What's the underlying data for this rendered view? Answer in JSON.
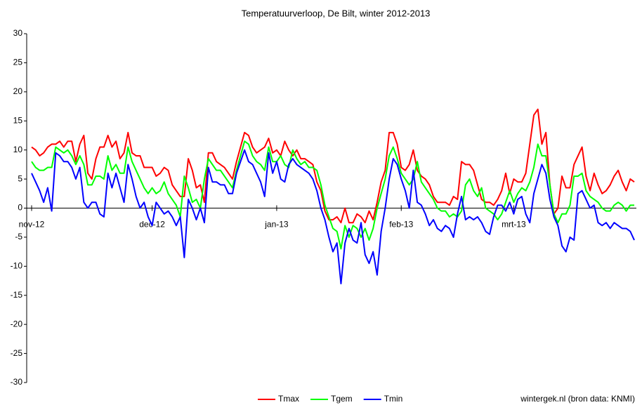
{
  "chart_data": {
    "type": "line",
    "title": "Temperatuurverloop, De Bilt, winter 2012-2013",
    "source": "wintergek.nl (bron data: KNMI)",
    "categories": [
      "nov-12",
      null,
      null,
      null,
      null,
      null,
      null,
      null,
      null,
      null,
      null,
      null,
      null,
      null,
      null,
      null,
      null,
      null,
      null,
      null,
      null,
      null,
      null,
      null,
      null,
      null,
      null,
      null,
      null,
      null,
      "dec-12",
      null,
      null,
      null,
      null,
      null,
      null,
      null,
      null,
      null,
      null,
      null,
      null,
      null,
      null,
      null,
      null,
      null,
      null,
      null,
      null,
      null,
      null,
      null,
      null,
      null,
      null,
      null,
      null,
      null,
      null,
      "jan-13",
      null,
      null,
      null,
      null,
      null,
      null,
      null,
      null,
      null,
      null,
      null,
      null,
      null,
      null,
      null,
      null,
      null,
      null,
      null,
      null,
      null,
      null,
      null,
      null,
      null,
      null,
      null,
      null,
      null,
      null,
      "feb-13",
      null,
      null,
      null,
      null,
      null,
      null,
      null,
      null,
      null,
      null,
      null,
      null,
      null,
      null,
      null,
      null,
      null,
      null,
      null,
      null,
      null,
      null,
      null,
      null,
      null,
      null,
      null,
      "mrt-13",
      null,
      null,
      null,
      null,
      null,
      null,
      null,
      null,
      null,
      null,
      null,
      null,
      null,
      null,
      null,
      null,
      null,
      null,
      null,
      null,
      null,
      null,
      null,
      null,
      null,
      null,
      null,
      null,
      null,
      null
    ],
    "series": [
      {
        "name": "Tmax",
        "color": "#ff0000",
        "values": [
          10.5,
          10,
          9,
          9.5,
          10.5,
          11,
          11,
          11.5,
          10.5,
          11.5,
          11.5,
          8,
          11,
          12.5,
          6,
          5,
          8.5,
          10.5,
          10.5,
          12.5,
          10.5,
          11.5,
          8.5,
          9.5,
          13,
          9.5,
          9,
          9,
          7,
          7,
          7,
          5.5,
          6,
          7,
          6.5,
          4,
          3,
          2,
          2,
          8.5,
          6.5,
          3.5,
          4,
          1,
          9.5,
          9.5,
          8,
          7.5,
          7,
          6,
          5,
          8,
          10.5,
          13,
          12.5,
          10.5,
          9.5,
          10,
          10.5,
          12,
          9.5,
          10,
          9,
          11.5,
          10,
          9,
          10,
          8.5,
          8.5,
          8,
          7.5,
          4.5,
          3,
          -0.5,
          -2,
          -2,
          -1.5,
          -2.5,
          0,
          -2.5,
          -2.5,
          -1,
          -1.5,
          -2.5,
          -0.5,
          -2,
          1,
          4.5,
          6.5,
          13,
          13,
          11,
          7,
          6.5,
          7.5,
          10,
          6.5,
          5.5,
          5,
          4,
          2,
          1,
          1,
          1,
          0.5,
          2,
          1.5,
          8,
          7.5,
          7.5,
          6.5,
          4,
          1.5,
          1,
          1,
          0.5,
          1.5,
          3,
          6,
          2.5,
          5,
          4.5,
          4.5,
          6,
          11,
          16,
          17,
          11,
          13,
          4,
          -1,
          0,
          5.5,
          3.5,
          3.5,
          7.5,
          9,
          10.5,
          5.5,
          3,
          6,
          4,
          2.5,
          3,
          4,
          5.5,
          6.5,
          4.5,
          3,
          5,
          4.5
        ]
      },
      {
        "name": "Tgem",
        "color": "#00ff00",
        "values": [
          8,
          7,
          6.5,
          6.5,
          7,
          7,
          10.5,
          10,
          9.5,
          10,
          9,
          7.5,
          9,
          7.5,
          4,
          4,
          5.5,
          5.5,
          5,
          9,
          6.5,
          7.5,
          6,
          6,
          10.5,
          8,
          6.5,
          5,
          3.5,
          2.5,
          3.5,
          2.5,
          3,
          4.5,
          2.5,
          1.5,
          0.5,
          -1.5,
          5.5,
          3.5,
          1,
          1.5,
          0,
          5,
          8.5,
          7.5,
          6.5,
          6.5,
          5.5,
          4.5,
          3.5,
          6.5,
          9,
          11.5,
          11,
          9,
          8,
          7.5,
          6.5,
          10.5,
          8,
          8,
          9,
          7.5,
          7,
          10,
          8.5,
          7.5,
          8,
          7,
          7,
          6.5,
          4,
          0.5,
          -1.5,
          -3.5,
          -4,
          -7,
          -3,
          -5,
          -3,
          -3.5,
          -5,
          -3.5,
          -5.5,
          -3.5,
          0,
          2.5,
          5,
          9,
          10.5,
          8.5,
          6,
          5,
          4,
          5,
          8,
          4.5,
          3.5,
          2.5,
          1.5,
          0,
          -0.5,
          -0.5,
          -1.5,
          -1,
          -1.5,
          -0.5,
          4,
          5,
          3,
          2,
          3.5,
          0,
          -0.5,
          -1,
          -2,
          -1,
          1,
          3,
          1,
          2.5,
          3.5,
          3,
          4.5,
          7,
          11,
          9,
          9,
          4,
          -1,
          -2.5,
          -1,
          -1,
          0.5,
          5.5,
          5.5,
          6,
          3,
          2,
          1.5,
          1,
          0,
          -0.5,
          -0.5,
          0.5,
          1,
          0.5,
          -0.5,
          0.5,
          0.5
        ]
      },
      {
        "name": "Tmin",
        "color": "#0000ff",
        "values": [
          6,
          4.5,
          3,
          1,
          3.5,
          -0.5,
          9.5,
          9,
          8,
          8,
          7,
          5,
          7,
          1,
          0,
          1,
          1,
          -1,
          -1.5,
          6,
          3.5,
          6,
          3.5,
          1,
          7.5,
          5,
          2,
          0,
          1,
          -1.5,
          -3,
          1,
          0,
          -1,
          -0.5,
          -1.5,
          -3,
          -1.5,
          -8.5,
          1.5,
          0,
          -2,
          0,
          -2.5,
          7,
          4.5,
          4.5,
          4,
          4,
          2.5,
          2.5,
          6,
          8,
          10,
          8,
          7.5,
          6,
          4.5,
          2,
          9.5,
          6,
          8,
          5,
          4.5,
          7.5,
          8.5,
          7.5,
          7,
          6.5,
          6,
          5,
          3,
          0,
          -2,
          -5,
          -7.5,
          -6,
          -13,
          -6,
          -3.5,
          -5.5,
          -6,
          -2.5,
          -8,
          -9.5,
          -7.5,
          -11.5,
          -4,
          0,
          5,
          8.5,
          7.5,
          5,
          3,
          0,
          6.5,
          1,
          0.5,
          -1,
          -3,
          -2,
          -3.5,
          -4,
          -3,
          -3.5,
          -5,
          -1,
          2,
          -2,
          -1.5,
          -2,
          -1.5,
          -2.5,
          -4,
          -4.5,
          -1.5,
          0.5,
          0.5,
          -0.5,
          1,
          -1,
          1.5,
          2,
          -1,
          -2.5,
          2.5,
          5,
          7.5,
          6,
          1.5,
          -1.5,
          -3,
          -6.5,
          -7.5,
          -5,
          -5.5,
          2.5,
          3,
          1.5,
          0,
          0.5,
          -2.5,
          -3,
          -2.5,
          -3.5,
          -2.5,
          -3,
          -3.5,
          -3.5,
          -4,
          -5.5
        ]
      }
    ],
    "ylim": [
      -30,
      30
    ],
    "yticks": [
      -30,
      -25,
      -20,
      -15,
      -10,
      -5,
      0,
      5,
      10,
      15,
      20,
      25,
      30
    ],
    "grid": false
  }
}
